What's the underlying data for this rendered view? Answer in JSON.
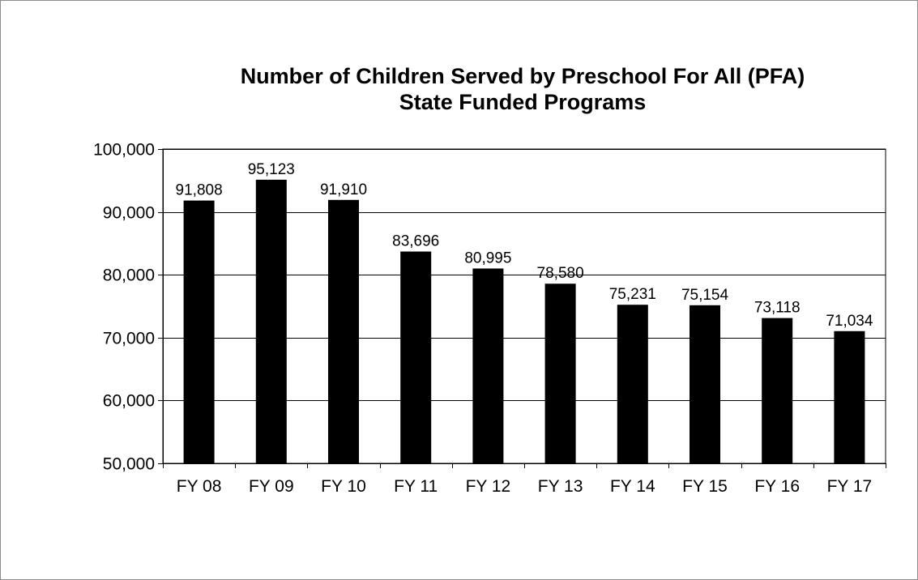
{
  "chart_data": {
    "type": "bar",
    "title_lines": [
      "Number of Children Served by Preschool For All (PFA)",
      "State Funded Programs"
    ],
    "xlabel": "",
    "ylabel": "",
    "categories": [
      "FY 08",
      "FY 09",
      "FY 10",
      "FY 11",
      "FY 12",
      "FY 13",
      "FY 14",
      "FY 15",
      "FY 16",
      "FY 17"
    ],
    "values": [
      91808,
      95123,
      91910,
      83696,
      80995,
      78580,
      75231,
      75154,
      73118,
      71034
    ],
    "data_labels": [
      "91,808",
      "95,123",
      "91,910",
      "83,696",
      "80,995",
      "78,580",
      "75,231",
      "75,154",
      "73,118",
      "71,034"
    ],
    "ylim": [
      50000,
      100000
    ],
    "yticks": [
      50000,
      60000,
      70000,
      80000,
      90000,
      100000
    ],
    "ytick_labels": [
      "50,000",
      "60,000",
      "70,000",
      "80,000",
      "90,000",
      "100,000"
    ],
    "grid": true,
    "legend": "none",
    "bar_color": "#000000",
    "gridline_color": "#000000"
  }
}
